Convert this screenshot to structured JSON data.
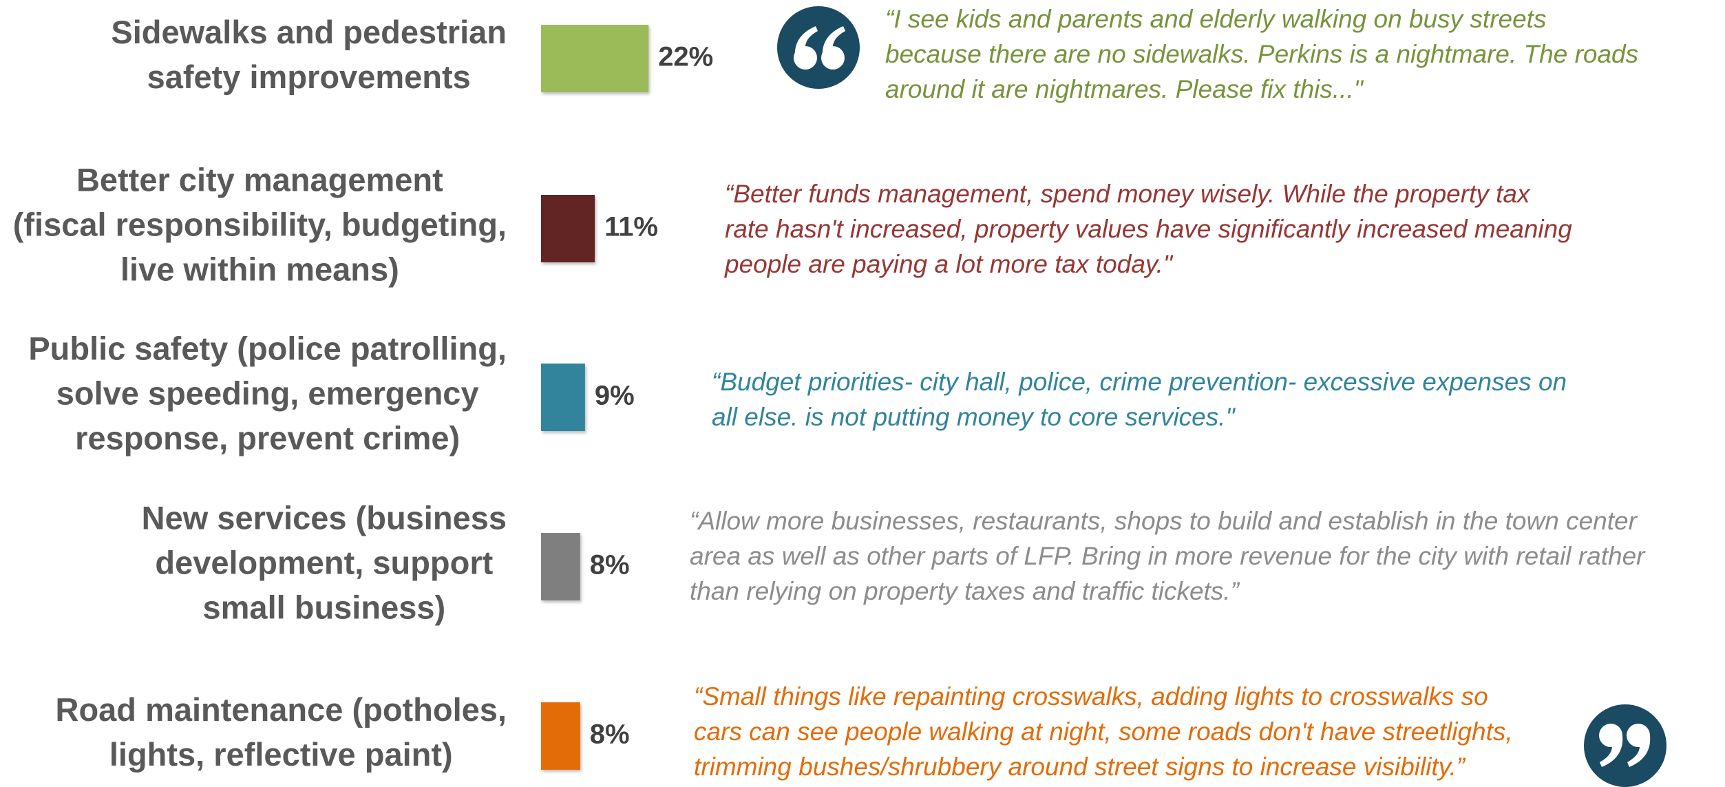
{
  "chart_data": {
    "type": "bar",
    "orientation": "horizontal",
    "categories": [
      [
        "Sidewalks and pedestrian",
        "safety improvements"
      ],
      [
        "Better city management",
        "(fiscal responsibility, budgeting,",
        "live within means)"
      ],
      [
        "Public safety (police patrolling,",
        "solve speeding, emergency",
        "response, prevent crime)"
      ],
      [
        "New services (business",
        "development, support",
        "small business)"
      ],
      [
        "Road maintenance (potholes,",
        "lights, reflective paint)"
      ]
    ],
    "values": [
      22,
      11,
      9,
      8,
      8
    ],
    "value_labels": [
      "22%",
      "11%",
      "9%",
      "8%",
      "8%"
    ],
    "colors": [
      "#9bbb59",
      "#632523",
      "#31849b",
      "#7f7f7f",
      "#e36c09"
    ],
    "quote_colors": [
      "#77933c",
      "#953735",
      "#31849b",
      "#8c8c8c",
      "#e36c09"
    ],
    "quotes": [
      [
        "“I see kids and parents and elderly walking on busy streets",
        "because there are no sidewalks. Perkins is a nightmare. The roads",
        "around it are nightmares. Please fix this...\""
      ],
      [
        "“Better funds management, spend money wisely. While the property tax",
        "rate hasn't increased, property values have significantly increased meaning",
        "people are paying a lot more tax today.\""
      ],
      [
        "“Budget priorities- city hall, police, crime prevention- excessive expenses on",
        "all else. is not putting money to core services.\""
      ],
      [
        "“Allow more businesses, restaurants, shops to build and establish in the town center",
        "area as well as other parts of LFP. Bring in more revenue for the city with retail rather",
        "than relying on property taxes and traffic tickets.”"
      ],
      [
        "“Small things like repainting crosswalks, adding lights to crosswalks so",
        "cars can see people walking at night, some roads don't have streetlights,",
        "trimming bushes/shrubbery around street signs to increase visibility.”"
      ]
    ]
  }
}
